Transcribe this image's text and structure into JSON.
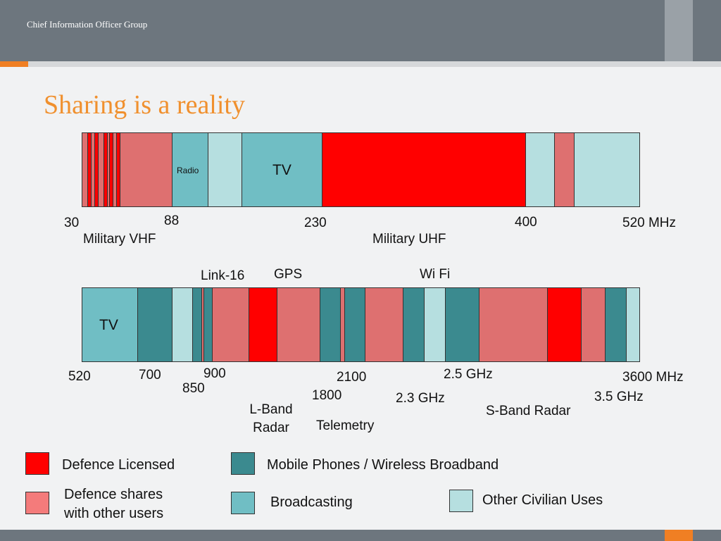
{
  "header": {
    "org": "Chief Information Officer Group"
  },
  "slide": {
    "title": "Sharing is a reality"
  },
  "colors": {
    "defence_licensed": "#ff0000",
    "defence_shared": "#de7070",
    "mobile": "#3b8a8f",
    "broadcasting": "#70bec4",
    "other_civilian": "#b6dfe0"
  },
  "band1": {
    "labels": {
      "f30": "30",
      "f88": "88",
      "f230": "230",
      "f400": "400",
      "f520": "520 MHz",
      "military_vhf": "Military VHF",
      "military_uhf": "Military UHF",
      "radio": "Radio",
      "tv": "TV"
    },
    "segments": [
      {
        "type": "defence_shared"
      },
      {
        "type": "defence_licensed"
      },
      {
        "type": "defence_shared"
      },
      {
        "type": "defence_licensed"
      },
      {
        "type": "defence_shared"
      },
      {
        "type": "defence_licensed"
      },
      {
        "type": "defence_shared"
      },
      {
        "type": "defence_licensed"
      },
      {
        "type": "defence_shared"
      },
      {
        "type": "defence_licensed"
      },
      {
        "type": "defence_shared"
      },
      {
        "type": "broadcasting"
      },
      {
        "type": "other_civilian"
      },
      {
        "type": "broadcasting"
      },
      {
        "type": "defence_licensed"
      },
      {
        "type": "other_civilian"
      },
      {
        "type": "defence_shared"
      },
      {
        "type": "other_civilian"
      }
    ]
  },
  "band2": {
    "labels": {
      "f520": "520",
      "f700": "700",
      "f850": "850",
      "f900": "900",
      "f1800": "1800",
      "f2100": "2100",
      "f2_3": "2.3 GHz",
      "f2_5": "2.5 GHz",
      "f3_5": "3.5 GHz",
      "f3600": "3600 MHz",
      "link16": "Link-16",
      "gps": "GPS",
      "wifi": "Wi Fi",
      "tv": "TV",
      "lband": "L-Band Radar",
      "telemetry": "Telemetry",
      "sband": "S-Band Radar"
    },
    "segments": [
      {
        "type": "broadcasting"
      },
      {
        "type": "mobile"
      },
      {
        "type": "other_civilian"
      },
      {
        "type": "mobile"
      },
      {
        "type": "defence_shared"
      },
      {
        "type": "mobile"
      },
      {
        "type": "defence_shared"
      },
      {
        "type": "defence_licensed"
      },
      {
        "type": "defence_shared"
      },
      {
        "type": "mobile"
      },
      {
        "type": "defence_shared"
      },
      {
        "type": "mobile"
      },
      {
        "type": "defence_shared"
      },
      {
        "type": "mobile"
      },
      {
        "type": "other_civilian"
      },
      {
        "type": "mobile"
      },
      {
        "type": "defence_shared"
      },
      {
        "type": "defence_licensed"
      },
      {
        "type": "defence_shared"
      },
      {
        "type": "mobile"
      },
      {
        "type": "other_civilian"
      }
    ]
  },
  "legend": {
    "defence_licensed": "Defence Licensed",
    "defence_shared": "Defence shares with other users",
    "mobile": "Mobile Phones / Wireless Broadband",
    "broadcasting": "Broadcasting",
    "other_civilian": "Other Civilian Uses"
  }
}
